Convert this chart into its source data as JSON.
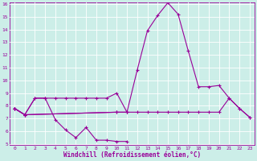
{
  "xlabel": "Windchill (Refroidissement éolien,°C)",
  "background_color": "#cceee8",
  "line_color": "#990099",
  "grid_color": "#ffffff",
  "ylim": [
    5,
    16
  ],
  "xlim": [
    -0.5,
    23.5
  ],
  "yticks": [
    5,
    6,
    7,
    8,
    9,
    10,
    11,
    12,
    13,
    14,
    15,
    16
  ],
  "xticks": [
    0,
    1,
    2,
    3,
    4,
    5,
    6,
    7,
    8,
    9,
    10,
    11,
    12,
    13,
    14,
    15,
    16,
    17,
    18,
    19,
    20,
    21,
    22,
    23
  ],
  "series": [
    {
      "x": [
        0,
        1,
        2,
        3,
        4,
        5,
        6,
        7,
        8,
        9,
        10,
        11
      ],
      "y": [
        7.8,
        7.3,
        8.6,
        8.6,
        6.9,
        6.1,
        5.5,
        6.3,
        5.3,
        5.3,
        5.2,
        5.2
      ]
    },
    {
      "x": [
        0,
        1,
        2,
        3,
        4,
        5,
        6,
        7,
        8,
        9,
        10,
        11
      ],
      "y": [
        7.8,
        7.3,
        8.6,
        8.6,
        8.6,
        8.6,
        8.6,
        8.6,
        8.6,
        8.6,
        9.0,
        7.5
      ]
    },
    {
      "x": [
        0,
        1,
        10,
        11,
        12,
        13,
        14,
        15,
        16,
        17,
        18,
        19,
        20,
        21,
        22,
        23
      ],
      "y": [
        7.8,
        7.3,
        7.5,
        7.5,
        10.8,
        13.9,
        15.1,
        16.1,
        15.2,
        12.3,
        9.5,
        9.5,
        9.6,
        8.6,
        7.8,
        7.1
      ]
    },
    {
      "x": [
        0,
        1,
        10,
        11,
        12,
        13,
        14,
        15,
        16,
        17,
        18,
        19,
        20,
        21,
        22,
        23
      ],
      "y": [
        7.8,
        7.3,
        7.5,
        7.5,
        7.5,
        7.5,
        7.5,
        7.5,
        7.5,
        7.5,
        7.5,
        7.5,
        7.5,
        8.6,
        7.8,
        7.1
      ]
    }
  ]
}
